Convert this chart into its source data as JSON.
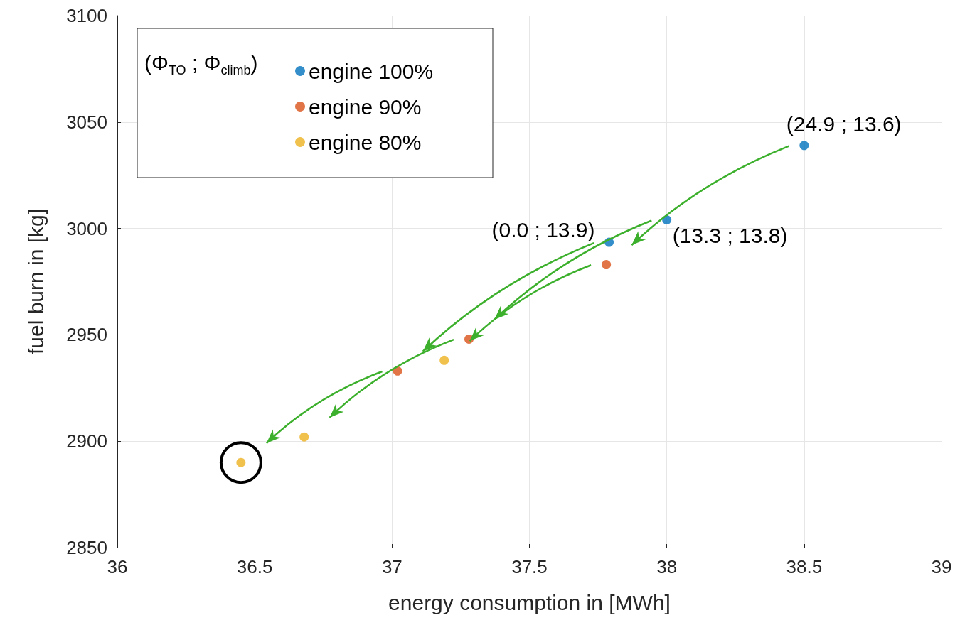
{
  "chart_data": {
    "type": "scatter",
    "xlabel": "energy consumption in [MWh]",
    "ylabel": "fuel burn in [kg]",
    "legend_title": "(Φ$_{TO}$ ; Φ$_{climb}$)",
    "series": [
      {
        "name": "engine 100%",
        "color": "#0072bd",
        "x": [
          38.5,
          38.0,
          37.79
        ],
        "values": [
          3039,
          3004,
          2993.5
        ]
      },
      {
        "name": "engine 90%",
        "color": "#d95319",
        "x": [
          37.78,
          37.28,
          37.02
        ],
        "values": [
          2983,
          2948,
          2933
        ]
      },
      {
        "name": "engine 80%",
        "color": "#edb120",
        "x": [
          37.19,
          36.68,
          36.45
        ],
        "values": [
          2938,
          2902,
          2890
        ]
      }
    ],
    "annotations": [
      {
        "text": "(24.9 ; 13.6)",
        "x": 38.5,
        "y": 3039
      },
      {
        "text": "(0.0 ; 13.9)",
        "x": 37.79,
        "y": 2993.5
      },
      {
        "text": "(13.3 ; 13.8)",
        "x": 38.0,
        "y": 3004
      }
    ],
    "xlim": [
      36,
      39
    ],
    "xticks": [
      36,
      36.5,
      37,
      37.5,
      38,
      38.5,
      39
    ],
    "ylim": [
      2850,
      3100
    ],
    "yticks": [
      2850,
      2900,
      2950,
      3000,
      3050,
      3100
    ],
    "grid": true,
    "legend": "top left",
    "marker": "circle"
  }
}
